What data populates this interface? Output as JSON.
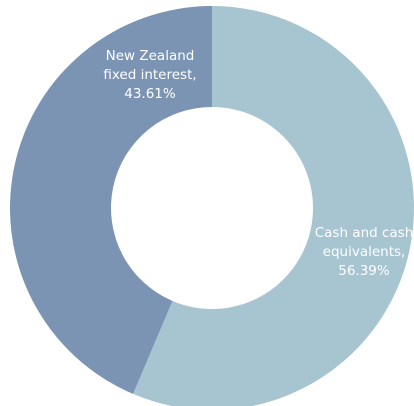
{
  "chart_data": {
    "type": "pie",
    "variant": "donut",
    "slices": [
      {
        "name": "Cash and cash equivalents",
        "value": 56.39,
        "color": "#a7c4d1",
        "label_lines": [
          "Cash and cash",
          "equivalents,",
          "56.39%"
        ]
      },
      {
        "name": "New Zealand fixed interest",
        "value": 43.61,
        "color": "#7b94b4",
        "label_lines": [
          "New Zealand",
          "fixed interest,",
          "43.61%"
        ]
      }
    ],
    "start_angle": "12 o'clock",
    "direction": "clockwise",
    "legend": "none"
  }
}
